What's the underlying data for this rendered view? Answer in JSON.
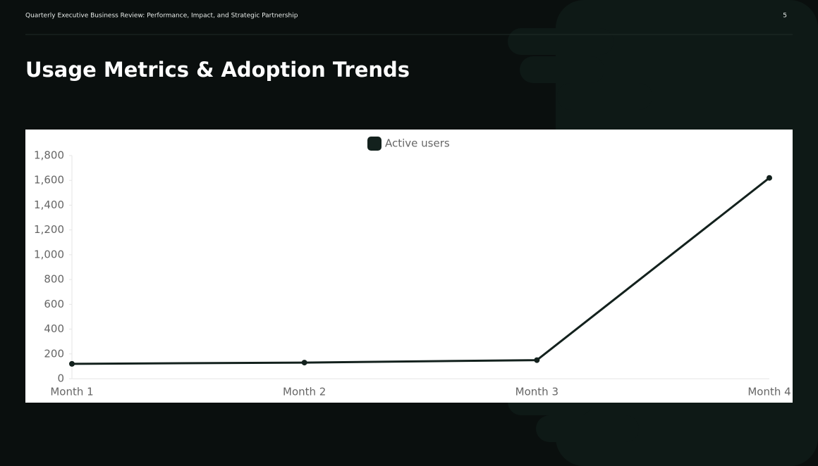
{
  "header": {
    "deck_title": "Quarterly Executive Business Review: Performance, Impact, and Strategic Partnership",
    "page_number": "5"
  },
  "slide_title": "Usage Metrics & Adoption Trends",
  "chart_data": {
    "type": "line",
    "categories": [
      "Month 1",
      "Month 2",
      "Month 3",
      "Month 4"
    ],
    "series": [
      {
        "name": "Active users",
        "color": "#13211d",
        "values": [
          120,
          130,
          150,
          1620
        ]
      }
    ],
    "ylim": [
      0,
      1800
    ],
    "yticks": [
      0,
      200,
      400,
      600,
      800,
      {
        "value": 1000,
        "label": "1,000"
      },
      {
        "value": 1200,
        "label": "1,200"
      },
      {
        "value": 1400,
        "label": "1,400"
      },
      {
        "value": 1600,
        "label": "1,600"
      },
      {
        "value": 1800,
        "label": "1,800"
      }
    ],
    "grid": false,
    "legend": "top"
  }
}
